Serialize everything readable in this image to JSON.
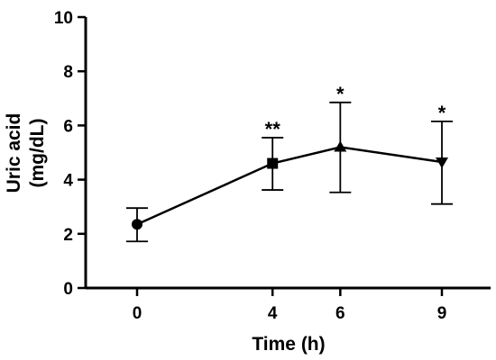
{
  "chart_data": {
    "type": "line",
    "categories": [
      "0",
      "4",
      "6",
      "9"
    ],
    "xlabel": "Time (h)",
    "ylabel_lines": [
      "Uric acid",
      "(mg/dL)"
    ],
    "ylim": [
      0,
      10
    ],
    "yticks": [
      0,
      2,
      4,
      6,
      8,
      10
    ],
    "series": [
      {
        "values": [
          2.35,
          4.6,
          5.2,
          4.65
        ],
        "err_upper": [
          2.95,
          5.55,
          6.85,
          6.15
        ],
        "err_lower": [
          1.72,
          3.62,
          3.53,
          3.1
        ],
        "markers": [
          "circle",
          "square",
          "triangle-up",
          "triangle-down"
        ],
        "annotations": [
          "",
          "**",
          "*",
          "*"
        ]
      }
    ],
    "grid": false,
    "legend": "none"
  }
}
